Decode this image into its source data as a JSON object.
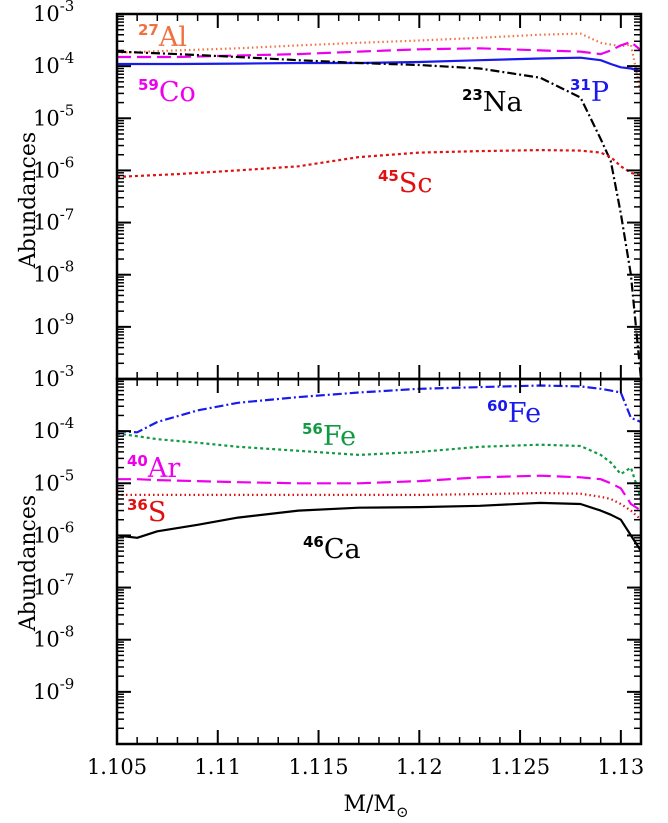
{
  "chart_data": [
    {
      "type": "line",
      "panel": "top",
      "ylabel": "Abundances",
      "yscale": "log",
      "ylim": [
        1e-10,
        0.001
      ],
      "xlim": [
        1.105,
        1.131
      ],
      "ytick_exponents": [
        -3,
        -4,
        -5,
        -6,
        -7,
        -8,
        -9
      ],
      "x": [
        1.105,
        1.108,
        1.111,
        1.114,
        1.117,
        1.12,
        1.123,
        1.126,
        1.128,
        1.129,
        1.1295,
        1.13,
        1.1305,
        1.131
      ],
      "series": [
        {
          "id": "al27",
          "label_base": "Al",
          "label_mass": "27",
          "color": "#f07040",
          "dash": "1.5,3",
          "values": [
            0.00018,
            0.0002,
            0.00022,
            0.00025,
            0.00028,
            0.00031,
            0.00035,
            0.0004,
            0.00042,
            0.00028,
            0.00026,
            0.00024,
            0.00026,
            3e-05
          ]
        },
        {
          "id": "co59",
          "label_base": "Co",
          "label_mass": "59",
          "color": "#ee00ee",
          "dash": "14,6",
          "values": [
            0.00015,
            0.00015,
            0.00016,
            0.00017,
            0.00019,
            0.00021,
            0.00022,
            0.0002,
            0.00019,
            0.00017,
            0.0002,
            0.00025,
            0.00029,
            0.0002
          ]
        },
        {
          "id": "p31",
          "label_base": "P",
          "label_mass": "31",
          "color": "#1a1aee",
          "dash": "",
          "values": [
            0.00011,
            0.00011,
            0.000112,
            0.000115,
            0.000115,
            0.00012,
            0.00013,
            0.00014,
            0.000145,
            0.00013,
            0.00011,
            9.5e-05,
            9e-05,
            8e-05
          ]
        },
        {
          "id": "na23",
          "label_base": "Na",
          "label_mass": "23",
          "color": "#000000",
          "dash": "9,3,2,3",
          "values": [
            0.00019,
            0.00017,
            0.00015,
            0.00013,
            0.000115,
            0.000105,
            9e-05,
            6e-05,
            2.5e-05,
            4e-06,
            1.5e-06,
            1.5e-07,
            1e-08,
            1e-10
          ]
        },
        {
          "id": "sc45",
          "label_base": "Sc",
          "label_mass": "45",
          "color": "#e01010",
          "dash": "3,3",
          "values": [
            7.5e-07,
            8.5e-07,
            1e-06,
            1.2e-06,
            1.8e-06,
            2.2e-06,
            2.35e-06,
            2.45e-06,
            2.4e-06,
            2.2e-06,
            1.8e-06,
            1.2e-06,
            9e-07,
            8e-07
          ]
        }
      ]
    },
    {
      "type": "line",
      "panel": "bottom",
      "ylabel": "Abundances",
      "xlabel_base": "M/M",
      "xlabel_sub": "⊙",
      "yscale": "log",
      "ylim": [
        1e-10,
        0.001
      ],
      "xlim": [
        1.105,
        1.131
      ],
      "ytick_exponents": [
        -3,
        -4,
        -5,
        -6,
        -7,
        -8,
        -9
      ],
      "xticks": [
        1.105,
        1.11,
        1.115,
        1.12,
        1.125,
        1.13
      ],
      "xtick_labels": [
        "1.105",
        "1.11",
        "1.115",
        "1.12",
        "1.125",
        "1.13"
      ],
      "x": [
        1.105,
        1.106,
        1.107,
        1.109,
        1.111,
        1.114,
        1.117,
        1.12,
        1.123,
        1.126,
        1.128,
        1.129,
        1.1295,
        1.13,
        1.1305,
        1.131
      ],
      "series": [
        {
          "id": "fe60",
          "label_base": "Fe",
          "label_mass": "60",
          "color": "#1a1aee",
          "dash": "9,3,2,3",
          "values": [
            0.0001,
            9.5e-05,
            0.00015,
            0.00025,
            0.00035,
            0.00045,
            0.00055,
            0.00065,
            0.0007,
            0.00075,
            0.00072,
            0.00065,
            0.0006,
            0.00055,
            0.00018,
            0.00015
          ]
        },
        {
          "id": "fe56",
          "label_base": "Fe",
          "label_mass": "56",
          "color": "#119944",
          "dash": "3,3",
          "values": [
            9e-05,
            8e-05,
            7e-05,
            6e-05,
            5e-05,
            4.2e-05,
            3.5e-05,
            4e-05,
            5e-05,
            5.5e-05,
            5.2e-05,
            3.5e-05,
            2.5e-05,
            1.5e-05,
            2e-05,
            5e-06
          ]
        },
        {
          "id": "ar40",
          "label_base": "Ar",
          "label_mass": "40",
          "color": "#ee00ee",
          "dash": "14,6",
          "values": [
            1.2e-05,
            1.2e-05,
            1.15e-05,
            1.1e-05,
            1.05e-05,
            1e-05,
            1e-05,
            1.1e-05,
            1.3e-05,
            1.4e-05,
            1.3e-05,
            1.2e-05,
            1e-05,
            8e-06,
            4e-06,
            3e-06
          ]
        },
        {
          "id": "s36",
          "label_base": "S",
          "label_mass": "36",
          "color": "#e01010",
          "dash": "1.5,3",
          "values": [
            6e-06,
            6e-06,
            6e-06,
            6e-06,
            6e-06,
            6e-06,
            6e-06,
            6e-06,
            6.2e-06,
            6.5e-06,
            6.3e-06,
            5.5e-06,
            5e-06,
            4e-06,
            3e-06,
            2e-06
          ]
        },
        {
          "id": "ca46",
          "label_base": "Ca",
          "label_mass": "46",
          "color": "#000000",
          "dash": "",
          "values": [
            1e-06,
            9e-07,
            1.2e-06,
            1.6e-06,
            2.2e-06,
            3e-06,
            3.4e-06,
            3.5e-06,
            3.7e-06,
            4.2e-06,
            4e-06,
            3e-06,
            2.5e-06,
            2e-06,
            1e-06,
            5e-07
          ]
        }
      ]
    }
  ]
}
